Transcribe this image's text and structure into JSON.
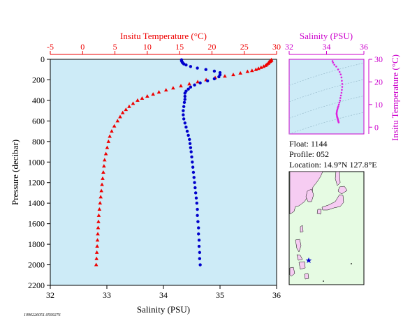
{
  "colors": {
    "plot_bg": "#cdebf7",
    "temperature": "#ee0000",
    "salinity": "#0000cc",
    "inset_points": "#dd22dd",
    "inset_axis": "#cc00cc",
    "land": "#f6ccf2",
    "sea": "#e6fbe3",
    "star": "#0000cc"
  },
  "labels": {
    "top_axis_title": "Insitu Temperature (°C)",
    "bottom_axis_title": "Salinity (PSU)",
    "left_axis_title": "Pressure (decibar)",
    "inset_top_title": "Salinity (PSU)",
    "inset_right_title": "Insitu Temperature (°C)",
    "footer_code": "1090226051.0500276"
  },
  "float_info": {
    "float_line": "Float:  1144",
    "profile_line": "Profile:  052",
    "location_line": "Location:  14.9°N  127.8°E"
  },
  "chart_data": [
    {
      "type": "scatter",
      "title": "",
      "axes": {
        "pressure": {
          "label": "Pressure (decibar)",
          "range": [
            0,
            2200
          ],
          "inverted": true,
          "ticks": [
            0,
            200,
            400,
            600,
            800,
            1000,
            1200,
            1400,
            1600,
            1800,
            2000,
            2200
          ]
        },
        "temperature": {
          "label": "Insitu Temperature (°C)",
          "position": "top",
          "range": [
            -5,
            30
          ],
          "ticks": [
            -5,
            0,
            5,
            10,
            15,
            20,
            25,
            30
          ]
        },
        "salinity": {
          "label": "Salinity (PSU)",
          "position": "bottom",
          "range": [
            32,
            36
          ],
          "ticks": [
            32,
            33,
            34,
            35,
            36
          ]
        }
      },
      "grid": false,
      "series": [
        {
          "marker": "triangle",
          "x_axis": "temperature",
          "points": [
            [
              29.2,
              5
            ],
            [
              29.2,
              10
            ],
            [
              29.1,
              15
            ],
            [
              29.0,
              20
            ],
            [
              28.9,
              25
            ],
            [
              28.8,
              30
            ],
            [
              28.7,
              40
            ],
            [
              28.5,
              50
            ],
            [
              28.3,
              60
            ],
            [
              28.0,
              70
            ],
            [
              27.6,
              80
            ],
            [
              27.2,
              90
            ],
            [
              26.8,
              100
            ],
            [
              26.2,
              110
            ],
            [
              25.5,
              120
            ],
            [
              24.4,
              135
            ],
            [
              23.3,
              150
            ],
            [
              22.0,
              165
            ],
            [
              20.5,
              180
            ],
            [
              19.1,
              200
            ],
            [
              17.8,
              220
            ],
            [
              16.5,
              240
            ],
            [
              15.2,
              260
            ],
            [
              14.0,
              280
            ],
            [
              12.9,
              300
            ],
            [
              11.8,
              320
            ],
            [
              10.9,
              340
            ],
            [
              10.0,
              360
            ],
            [
              9.2,
              380
            ],
            [
              8.5,
              400
            ],
            [
              7.8,
              430
            ],
            [
              7.2,
              460
            ],
            [
              6.7,
              490
            ],
            [
              6.2,
              520
            ],
            [
              5.8,
              560
            ],
            [
              5.4,
              600
            ],
            [
              4.9,
              650
            ],
            [
              4.5,
              700
            ],
            [
              4.2,
              750
            ],
            [
              4.0,
              800
            ],
            [
              3.8,
              860
            ],
            [
              3.6,
              920
            ],
            [
              3.4,
              980
            ],
            [
              3.3,
              1040
            ],
            [
              3.2,
              1100
            ],
            [
              3.1,
              1160
            ],
            [
              3.0,
              1220
            ],
            [
              2.9,
              1280
            ],
            [
              2.8,
              1340
            ],
            [
              2.7,
              1400
            ],
            [
              2.6,
              1460
            ],
            [
              2.5,
              1520
            ],
            [
              2.45,
              1580
            ],
            [
              2.4,
              1640
            ],
            [
              2.35,
              1700
            ],
            [
              2.3,
              1760
            ],
            [
              2.25,
              1820
            ],
            [
              2.2,
              1880
            ],
            [
              2.15,
              1940
            ],
            [
              2.1,
              2000
            ]
          ]
        },
        {
          "marker": "circle",
          "x_axis": "salinity",
          "points": [
            [
              34.32,
              5
            ],
            [
              34.32,
              15
            ],
            [
              34.33,
              25
            ],
            [
              34.34,
              35
            ],
            [
              34.36,
              45
            ],
            [
              34.4,
              55
            ],
            [
              34.48,
              70
            ],
            [
              34.6,
              85
            ],
            [
              34.75,
              100
            ],
            [
              34.9,
              115
            ],
            [
              35.0,
              130
            ],
            [
              35.0,
              150
            ],
            [
              34.98,
              170
            ],
            [
              34.9,
              190
            ],
            [
              34.78,
              210
            ],
            [
              34.65,
              230
            ],
            [
              34.55,
              250
            ],
            [
              34.48,
              270
            ],
            [
              34.44,
              290
            ],
            [
              34.4,
              310
            ],
            [
              34.38,
              330
            ],
            [
              34.38,
              360
            ],
            [
              34.38,
              390
            ],
            [
              34.37,
              420
            ],
            [
              34.36,
              460
            ],
            [
              34.35,
              500
            ],
            [
              34.35,
              540
            ],
            [
              34.36,
              580
            ],
            [
              34.38,
              620
            ],
            [
              34.4,
              660
            ],
            [
              34.42,
              700
            ],
            [
              34.44,
              740
            ],
            [
              34.46,
              780
            ],
            [
              34.47,
              820
            ],
            [
              34.48,
              860
            ],
            [
              34.49,
              900
            ],
            [
              34.5,
              950
            ],
            [
              34.51,
              1000
            ],
            [
              34.52,
              1050
            ],
            [
              34.53,
              1100
            ],
            [
              34.54,
              1150
            ],
            [
              34.55,
              1200
            ],
            [
              34.56,
              1250
            ],
            [
              34.57,
              1300
            ],
            [
              34.58,
              1350
            ],
            [
              34.59,
              1400
            ],
            [
              34.6,
              1460
            ],
            [
              34.6,
              1520
            ],
            [
              34.61,
              1580
            ],
            [
              34.62,
              1640
            ],
            [
              34.62,
              1700
            ],
            [
              34.63,
              1760
            ],
            [
              34.63,
              1820
            ],
            [
              34.64,
              1880
            ],
            [
              34.64,
              1940
            ],
            [
              34.65,
              2000
            ]
          ]
        }
      ]
    },
    {
      "type": "scatter",
      "title": "",
      "axes": {
        "salinity": {
          "label": "Salinity (PSU)",
          "position": "top",
          "range": [
            32,
            36
          ],
          "ticks": [
            32,
            34,
            36
          ]
        },
        "temperature": {
          "label": "Insitu Temperature (°C)",
          "position": "right",
          "range": [
            -3,
            30
          ],
          "ticks": [
            0,
            10,
            20,
            30
          ]
        }
      },
      "series": [
        {
          "marker": "dot",
          "points": [
            [
              34.32,
              29.2
            ],
            [
              34.35,
              28.5
            ],
            [
              34.42,
              27.6
            ],
            [
              34.52,
              26.8
            ],
            [
              34.62,
              25.5
            ],
            [
              34.7,
              24.4
            ],
            [
              34.76,
              23.3
            ],
            [
              34.8,
              22.0
            ],
            [
              34.82,
              20.5
            ],
            [
              34.84,
              19.1
            ],
            [
              34.84,
              17.8
            ],
            [
              34.82,
              16.5
            ],
            [
              34.8,
              15.2
            ],
            [
              34.77,
              14.0
            ],
            [
              34.74,
              12.9
            ],
            [
              34.72,
              11.8
            ],
            [
              34.69,
              10.9
            ],
            [
              34.66,
              10.0
            ],
            [
              34.63,
              9.2
            ],
            [
              34.6,
              8.5
            ],
            [
              34.58,
              7.8
            ],
            [
              34.56,
              7.2
            ],
            [
              34.55,
              6.7
            ],
            [
              34.54,
              6.2
            ],
            [
              34.54,
              5.8
            ],
            [
              34.55,
              5.4
            ],
            [
              34.56,
              4.9
            ],
            [
              34.57,
              4.5
            ],
            [
              34.58,
              4.2
            ],
            [
              34.59,
              4.0
            ],
            [
              34.6,
              3.6
            ],
            [
              34.61,
              3.3
            ],
            [
              34.62,
              3.0
            ],
            [
              34.63,
              2.7
            ],
            [
              34.64,
              2.4
            ],
            [
              34.65,
              2.1
            ]
          ]
        }
      ]
    },
    {
      "type": "map",
      "title": "",
      "marker": {
        "lat": 14.9,
        "lon": 127.8,
        "symbol": "star"
      }
    }
  ]
}
